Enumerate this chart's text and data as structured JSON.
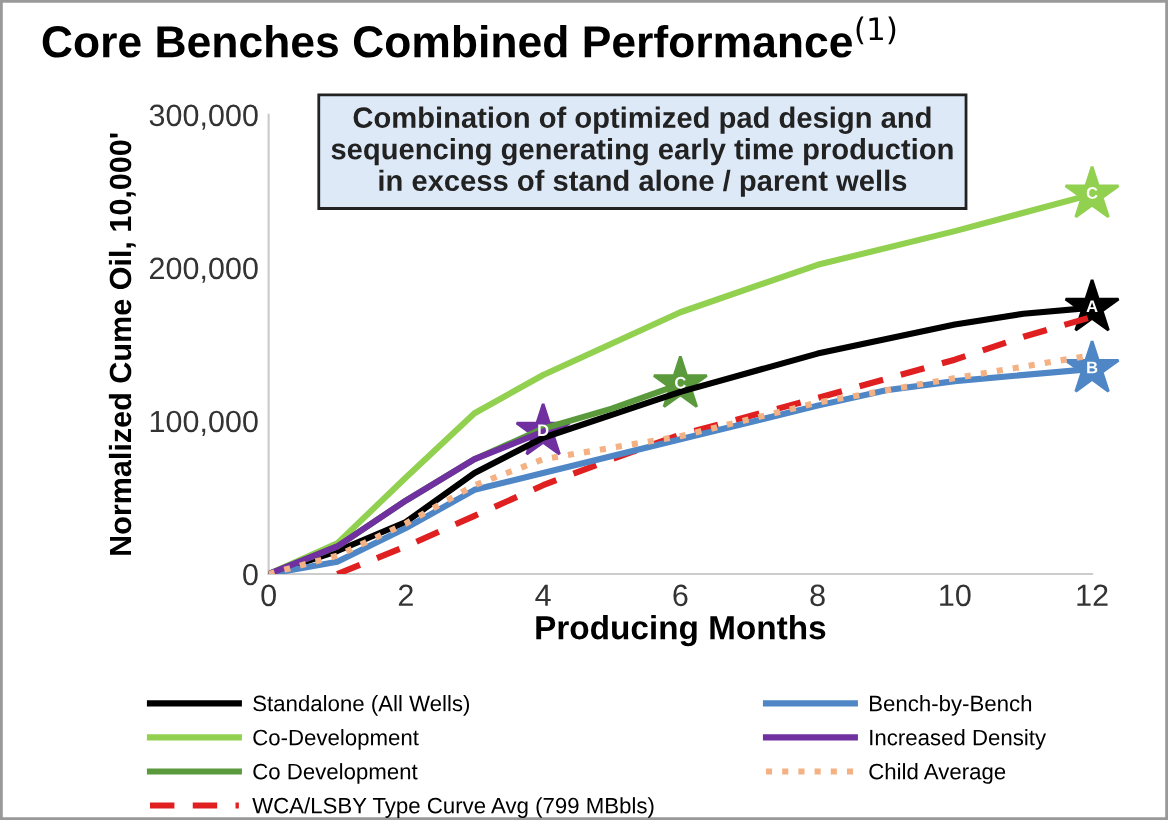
{
  "chart_data": {
    "type": "line",
    "title": "Core Benches Combined Performance$^{(1)}$",
    "xlabel": "Producing Months",
    "ylabel": "Normalized Cume Oil, 10,000'",
    "xlim": [
      0,
      12
    ],
    "xticks": [
      0,
      2,
      4,
      6,
      8,
      10,
      12
    ],
    "ylim": [
      0,
      300000
    ],
    "yticks": [
      0,
      {
        "value": 100000,
        "label": "100,000"
      },
      {
        "value": 200000,
        "label": "200,000"
      },
      {
        "value": 300000,
        "label": "300,000"
      }
    ],
    "grid": false,
    "legend": "bottom",
    "series": [
      {
        "name": "Standalone (All Wells)",
        "color": "#000000",
        "x": [
          0,
          1,
          2,
          3,
          4,
          6,
          8,
          10,
          11,
          12
        ],
        "values": [
          0,
          15000,
          34000,
          66000,
          89000,
          119000,
          144000,
          163000,
          170000,
          174000
        ]
      },
      {
        "name": "Co-Development",
        "color": "#92d050",
        "x": [
          0,
          1,
          2,
          3,
          4,
          6,
          8,
          10,
          12
        ],
        "values": [
          0,
          20000,
          63000,
          105000,
          130000,
          171000,
          202000,
          224000,
          248000
        ]
      },
      {
        "name": "Co Development",
        "color": "#5a9a3c",
        "x": [
          0,
          1,
          2,
          3,
          4,
          5,
          6
        ],
        "values": [
          0,
          18000,
          48000,
          75000,
          95000,
          108000,
          124000
        ]
      },
      {
        "name": "WCA/LSBY Type Curve Avg (799 MBbls)",
        "color": "#e02020",
        "line_style": "dashed",
        "x": [
          1,
          2,
          3,
          4,
          5,
          6,
          8,
          10,
          11,
          12
        ],
        "values": [
          0,
          18000,
          38000,
          58000,
          75000,
          91000,
          115000,
          140000,
          155000,
          168000
        ]
      },
      {
        "name": "Bench-by-Bench",
        "color": "#4f86c6",
        "x": [
          0,
          1,
          2,
          3,
          4,
          6,
          8,
          9,
          10,
          12
        ],
        "values": [
          0,
          8000,
          30000,
          55000,
          66000,
          88000,
          110000,
          120000,
          126000,
          134000
        ]
      },
      {
        "name": "Increased Density",
        "color": "#7030a0",
        "x": [
          0,
          1,
          2,
          3,
          4
        ],
        "values": [
          0,
          18000,
          48000,
          75000,
          93000
        ]
      },
      {
        "name": "Child Average",
        "color": "#f4b183",
        "line_style": "dotted",
        "x": [
          0,
          1,
          2,
          3,
          4,
          6,
          8,
          10,
          12
        ],
        "values": [
          0,
          12000,
          33000,
          58000,
          75000,
          90000,
          112000,
          128000,
          143000
        ]
      }
    ],
    "annotations": [
      "Combination of optimized pad design and\nsequencing generating early time production\nin excess of stand alone / parent wells",
      {
        "text": "A",
        "x": 12,
        "y": 174000
      },
      {
        "text": "C",
        "x": 12,
        "y": 248000
      },
      {
        "text": "C",
        "x": 6,
        "y": 124000
      },
      {
        "text": "B",
        "x": 12,
        "y": 134000
      },
      {
        "text": "D",
        "x": 4,
        "y": 93000
      }
    ]
  }
}
